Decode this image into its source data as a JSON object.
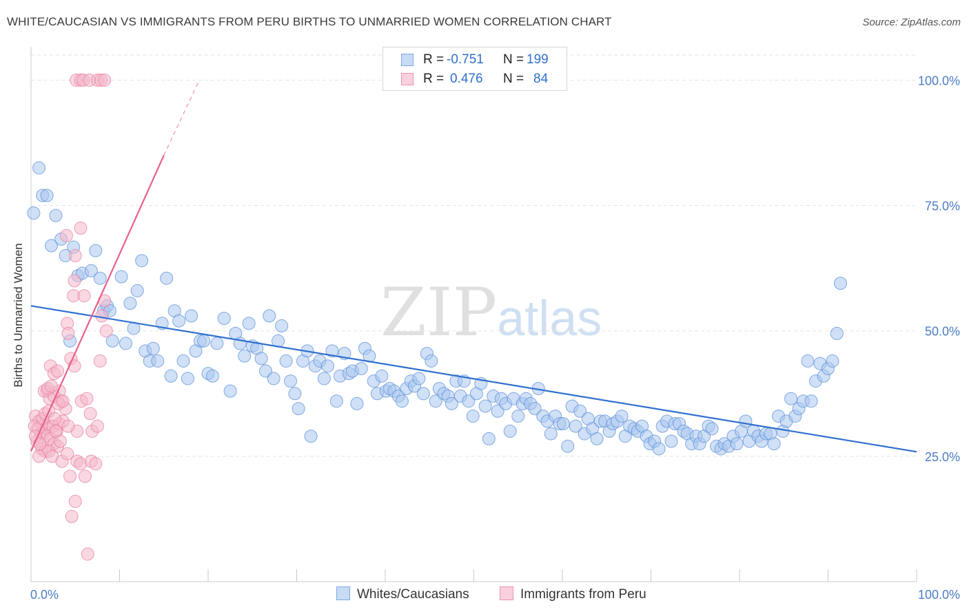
{
  "header": {
    "title": "WHITE/CAUCASIAN VS IMMIGRANTS FROM PERU BIRTHS TO UNMARRIED WOMEN CORRELATION CHART",
    "source": "Source: ZipAtlas.com"
  },
  "watermark": {
    "text_a": "ZIP",
    "text_b": "atlas"
  },
  "legend": {
    "r_label": "R =",
    "n_label": "N =",
    "series": [
      {
        "r": "-0.751",
        "n": "199",
        "color": "#a9c6ef"
      },
      {
        "r": "0.476",
        "n": "84",
        "color": "#f4b8ca"
      }
    ]
  },
  "bottom_legend": {
    "items": [
      {
        "label": "Whites/Caucasians",
        "color": "#a9c6ef"
      },
      {
        "label": "Immigrants from Peru",
        "color": "#f4b8ca"
      }
    ]
  },
  "chart_data": {
    "type": "scatter",
    "title": "WHITE/CAUCASIAN VS IMMIGRANTS FROM PERU BIRTHS TO UNMARRIED WOMEN CORRELATION CHART",
    "xlabel": "",
    "ylabel": "Births to Unmarried Women",
    "xlim": [
      0,
      100
    ],
    "ylim": [
      0,
      105
    ],
    "x_tick_labels": [
      "0.0%",
      "100.0%"
    ],
    "y_tick_values": [
      25,
      50,
      75,
      100
    ],
    "y_tick_labels": [
      "25.0%",
      "50.0%",
      "75.0%",
      "100.0%"
    ],
    "grid": true,
    "series": [
      {
        "name": "Whites/Caucasians",
        "color": "#5b8fd8",
        "fill": "#a9c6ef",
        "trend": {
          "x": [
            0,
            100
          ],
          "y": [
            55.0,
            25.9
          ],
          "color": "#2f6fcf",
          "style": "solid"
        },
        "points": [
          [
            0.3,
            73.5
          ],
          [
            0.9,
            82.5
          ],
          [
            1.3,
            77
          ],
          [
            1.8,
            77
          ],
          [
            2.3,
            67
          ],
          [
            2.8,
            73
          ],
          [
            3.4,
            68.3
          ],
          [
            3.9,
            65
          ],
          [
            4.4,
            48
          ],
          [
            4.8,
            66.7
          ],
          [
            5.3,
            61
          ],
          [
            5.8,
            61.5
          ],
          [
            6.8,
            62
          ],
          [
            7.3,
            66
          ],
          [
            7.8,
            60.5
          ],
          [
            8.2,
            54
          ],
          [
            8.6,
            55
          ],
          [
            8.9,
            54
          ],
          [
            9.2,
            48
          ],
          [
            10.2,
            60.8
          ],
          [
            10.7,
            47.5
          ],
          [
            11.2,
            55.5
          ],
          [
            11.6,
            50.5
          ],
          [
            12,
            58
          ],
          [
            12.5,
            64
          ],
          [
            12.9,
            46
          ],
          [
            13.4,
            44
          ],
          [
            13.8,
            46.5
          ],
          [
            14.3,
            44
          ],
          [
            14.8,
            51.5
          ],
          [
            15.3,
            60.5
          ],
          [
            15.8,
            41
          ],
          [
            16.2,
            54
          ],
          [
            16.7,
            52
          ],
          [
            17.2,
            44
          ],
          [
            17.7,
            40.5
          ],
          [
            18.1,
            53
          ],
          [
            18.6,
            46
          ],
          [
            19.1,
            48
          ],
          [
            19.5,
            48
          ],
          [
            20,
            41.5
          ],
          [
            20.5,
            41
          ],
          [
            21,
            47.5
          ],
          [
            21.8,
            52.5
          ],
          [
            22.5,
            38
          ],
          [
            23.1,
            49.5
          ],
          [
            23.6,
            47.5
          ],
          [
            24.1,
            45
          ],
          [
            24.6,
            51.5
          ],
          [
            25,
            47
          ],
          [
            25.5,
            46.5
          ],
          [
            26,
            44.5
          ],
          [
            26.5,
            42
          ],
          [
            26.9,
            53
          ],
          [
            27.4,
            40.5
          ],
          [
            27.9,
            48
          ],
          [
            28.3,
            51
          ],
          [
            28.8,
            44
          ],
          [
            29.3,
            40
          ],
          [
            29.8,
            37.5
          ],
          [
            30.2,
            34.5
          ],
          [
            30.7,
            44
          ],
          [
            31.2,
            46
          ],
          [
            31.6,
            29
          ],
          [
            32.1,
            43
          ],
          [
            32.6,
            44
          ],
          [
            33.1,
            40.5
          ],
          [
            33.5,
            43
          ],
          [
            34,
            46
          ],
          [
            34.5,
            36
          ],
          [
            34.9,
            41
          ],
          [
            35.4,
            45.5
          ],
          [
            35.9,
            41.5
          ],
          [
            36.3,
            42
          ],
          [
            36.8,
            35.5
          ],
          [
            37.3,
            42.5
          ],
          [
            37.7,
            46.5
          ],
          [
            38.2,
            45
          ],
          [
            38.7,
            40
          ],
          [
            39.1,
            37.5
          ],
          [
            39.6,
            41
          ],
          [
            40.1,
            38
          ],
          [
            40.5,
            38.5
          ],
          [
            41,
            38
          ],
          [
            41.5,
            37
          ],
          [
            41.9,
            36
          ],
          [
            42.4,
            38.5
          ],
          [
            42.9,
            40
          ],
          [
            43.3,
            39
          ],
          [
            43.8,
            40.5
          ],
          [
            44.3,
            37.5
          ],
          [
            44.7,
            45.5
          ],
          [
            45.2,
            44
          ],
          [
            45.7,
            36
          ],
          [
            46.1,
            38.5
          ],
          [
            46.6,
            37.5
          ],
          [
            47.1,
            37
          ],
          [
            47.5,
            35.5
          ],
          [
            48,
            40
          ],
          [
            48.5,
            37
          ],
          [
            48.9,
            40
          ],
          [
            49.4,
            36
          ],
          [
            49.9,
            33
          ],
          [
            50.3,
            37.5
          ],
          [
            50.8,
            39.5
          ],
          [
            51.3,
            35
          ],
          [
            51.7,
            28.5
          ],
          [
            52.2,
            37
          ],
          [
            52.7,
            34
          ],
          [
            53.1,
            36.5
          ],
          [
            53.6,
            35.5
          ],
          [
            54.1,
            30
          ],
          [
            54.5,
            36.5
          ],
          [
            55,
            33
          ],
          [
            55.5,
            35.5
          ],
          [
            55.9,
            36.5
          ],
          [
            56.4,
            35.5
          ],
          [
            56.9,
            34.5
          ],
          [
            57.3,
            38.5
          ],
          [
            57.8,
            33
          ],
          [
            58.3,
            32
          ],
          [
            58.7,
            29.5
          ],
          [
            59.2,
            33
          ],
          [
            59.7,
            31.5
          ],
          [
            60.1,
            31.5
          ],
          [
            60.6,
            27
          ],
          [
            61.1,
            35
          ],
          [
            61.5,
            31
          ],
          [
            62,
            34
          ],
          [
            62.5,
            29.5
          ],
          [
            62.9,
            32.5
          ],
          [
            63.4,
            30.5
          ],
          [
            63.9,
            28.5
          ],
          [
            64.3,
            32
          ],
          [
            64.8,
            32
          ],
          [
            65.3,
            30
          ],
          [
            65.7,
            31.5
          ],
          [
            66.2,
            32
          ],
          [
            66.7,
            33
          ],
          [
            67.1,
            29
          ],
          [
            67.6,
            31
          ],
          [
            68.1,
            30.5
          ],
          [
            68.5,
            30
          ],
          [
            69,
            31
          ],
          [
            69.5,
            29
          ],
          [
            69.9,
            27.5
          ],
          [
            70.4,
            28
          ],
          [
            70.9,
            26.5
          ],
          [
            71.3,
            31
          ],
          [
            71.8,
            32
          ],
          [
            72.3,
            28
          ],
          [
            72.7,
            31.5
          ],
          [
            73.2,
            31.5
          ],
          [
            73.7,
            30
          ],
          [
            74.1,
            29.5
          ],
          [
            74.6,
            27.5
          ],
          [
            75.1,
            29
          ],
          [
            75.5,
            27.5
          ],
          [
            76,
            29
          ],
          [
            76.5,
            31
          ],
          [
            76.9,
            30.5
          ],
          [
            77.4,
            27
          ],
          [
            77.9,
            26.5
          ],
          [
            78.3,
            27.5
          ],
          [
            78.8,
            27
          ],
          [
            79.3,
            29
          ],
          [
            79.7,
            27.5
          ],
          [
            80.2,
            30
          ],
          [
            80.7,
            32
          ],
          [
            81.1,
            28
          ],
          [
            81.6,
            30
          ],
          [
            82.1,
            29
          ],
          [
            82.5,
            28
          ],
          [
            83,
            29.5
          ],
          [
            83.5,
            29.5
          ],
          [
            83.9,
            27.5
          ],
          [
            84.4,
            33
          ],
          [
            84.9,
            30
          ],
          [
            85.3,
            32
          ],
          [
            85.8,
            36.5
          ],
          [
            86.3,
            33
          ],
          [
            86.7,
            34.5
          ],
          [
            87.2,
            36
          ],
          [
            87.7,
            44
          ],
          [
            88.1,
            36
          ],
          [
            88.6,
            40
          ],
          [
            89.1,
            43.5
          ],
          [
            89.5,
            41
          ],
          [
            90,
            42.5
          ],
          [
            90.5,
            44
          ],
          [
            91,
            49.5
          ],
          [
            91.4,
            59.5
          ]
        ]
      },
      {
        "name": "Immigrants from Peru",
        "color": "#e87fa0",
        "fill": "#f4b8ca",
        "trend": {
          "x": [
            0,
            15
          ],
          "y": [
            26,
            85
          ],
          "x_dashed": [
            15,
            19
          ],
          "y_dashed": [
            85,
            100
          ],
          "color": "#e8608a",
          "style": "solid+dashed"
        },
        "points": [
          [
            5.1,
            100
          ],
          [
            5.6,
            100
          ],
          [
            5.9,
            100
          ],
          [
            6.6,
            100
          ],
          [
            7.5,
            100
          ],
          [
            7.9,
            100
          ],
          [
            8.3,
            100
          ],
          [
            4.0,
            69
          ],
          [
            5.0,
            65
          ],
          [
            5.6,
            70.5
          ],
          [
            4.9,
            60
          ],
          [
            4.8,
            57
          ],
          [
            6.0,
            57
          ],
          [
            8.3,
            56
          ],
          [
            4.1,
            51.5
          ],
          [
            4.2,
            49.5
          ],
          [
            4.5,
            44.5
          ],
          [
            4.9,
            43
          ],
          [
            8.5,
            50
          ],
          [
            8.0,
            53
          ],
          [
            7.8,
            44
          ],
          [
            2.2,
            43
          ],
          [
            2.6,
            41.5
          ],
          [
            3.0,
            42
          ],
          [
            3.2,
            38
          ],
          [
            1.8,
            38
          ],
          [
            1.5,
            38
          ],
          [
            2.1,
            36.5
          ],
          [
            2.6,
            37
          ],
          [
            3.4,
            36
          ],
          [
            3.9,
            34.5
          ],
          [
            0.5,
            33
          ],
          [
            0.9,
            32
          ],
          [
            1.3,
            31
          ],
          [
            1.7,
            30.5
          ],
          [
            2.1,
            31
          ],
          [
            2.5,
            31
          ],
          [
            2.9,
            30
          ],
          [
            3.2,
            31.5
          ],
          [
            3.6,
            32
          ],
          [
            1.1,
            29.5
          ],
          [
            1.4,
            29.5
          ],
          [
            1.8,
            29
          ],
          [
            2.2,
            28.5
          ],
          [
            2.6,
            27.5
          ],
          [
            3.0,
            27
          ],
          [
            0.7,
            28
          ],
          [
            1.2,
            26.5
          ],
          [
            1.6,
            26
          ],
          [
            2.0,
            26
          ],
          [
            2.4,
            25
          ],
          [
            0.9,
            25
          ],
          [
            3.5,
            24
          ],
          [
            4.1,
            25.5
          ],
          [
            5.2,
            24
          ],
          [
            5.6,
            23.5
          ],
          [
            6.1,
            21
          ],
          [
            6.8,
            24
          ],
          [
            7.3,
            23.5
          ],
          [
            4.4,
            21
          ],
          [
            5.0,
            16
          ],
          [
            4.6,
            13
          ],
          [
            5.7,
            36
          ],
          [
            6.3,
            36.5
          ],
          [
            6.7,
            33.5
          ],
          [
            6.9,
            30
          ],
          [
            7.5,
            31
          ],
          [
            5.2,
            30
          ],
          [
            0.4,
            31
          ],
          [
            0.8,
            30.5
          ],
          [
            1.3,
            32.5
          ],
          [
            1.6,
            33.5
          ],
          [
            2.0,
            34
          ],
          [
            0.5,
            29
          ],
          [
            1.0,
            27.5
          ],
          [
            6.4,
            5.5
          ],
          [
            2.7,
            32.5
          ],
          [
            3.1,
            35.5
          ],
          [
            3.6,
            36
          ],
          [
            4.2,
            31
          ],
          [
            1.9,
            38.5
          ],
          [
            2.3,
            39
          ],
          [
            2.8,
            30
          ],
          [
            3.3,
            28
          ]
        ]
      }
    ]
  }
}
